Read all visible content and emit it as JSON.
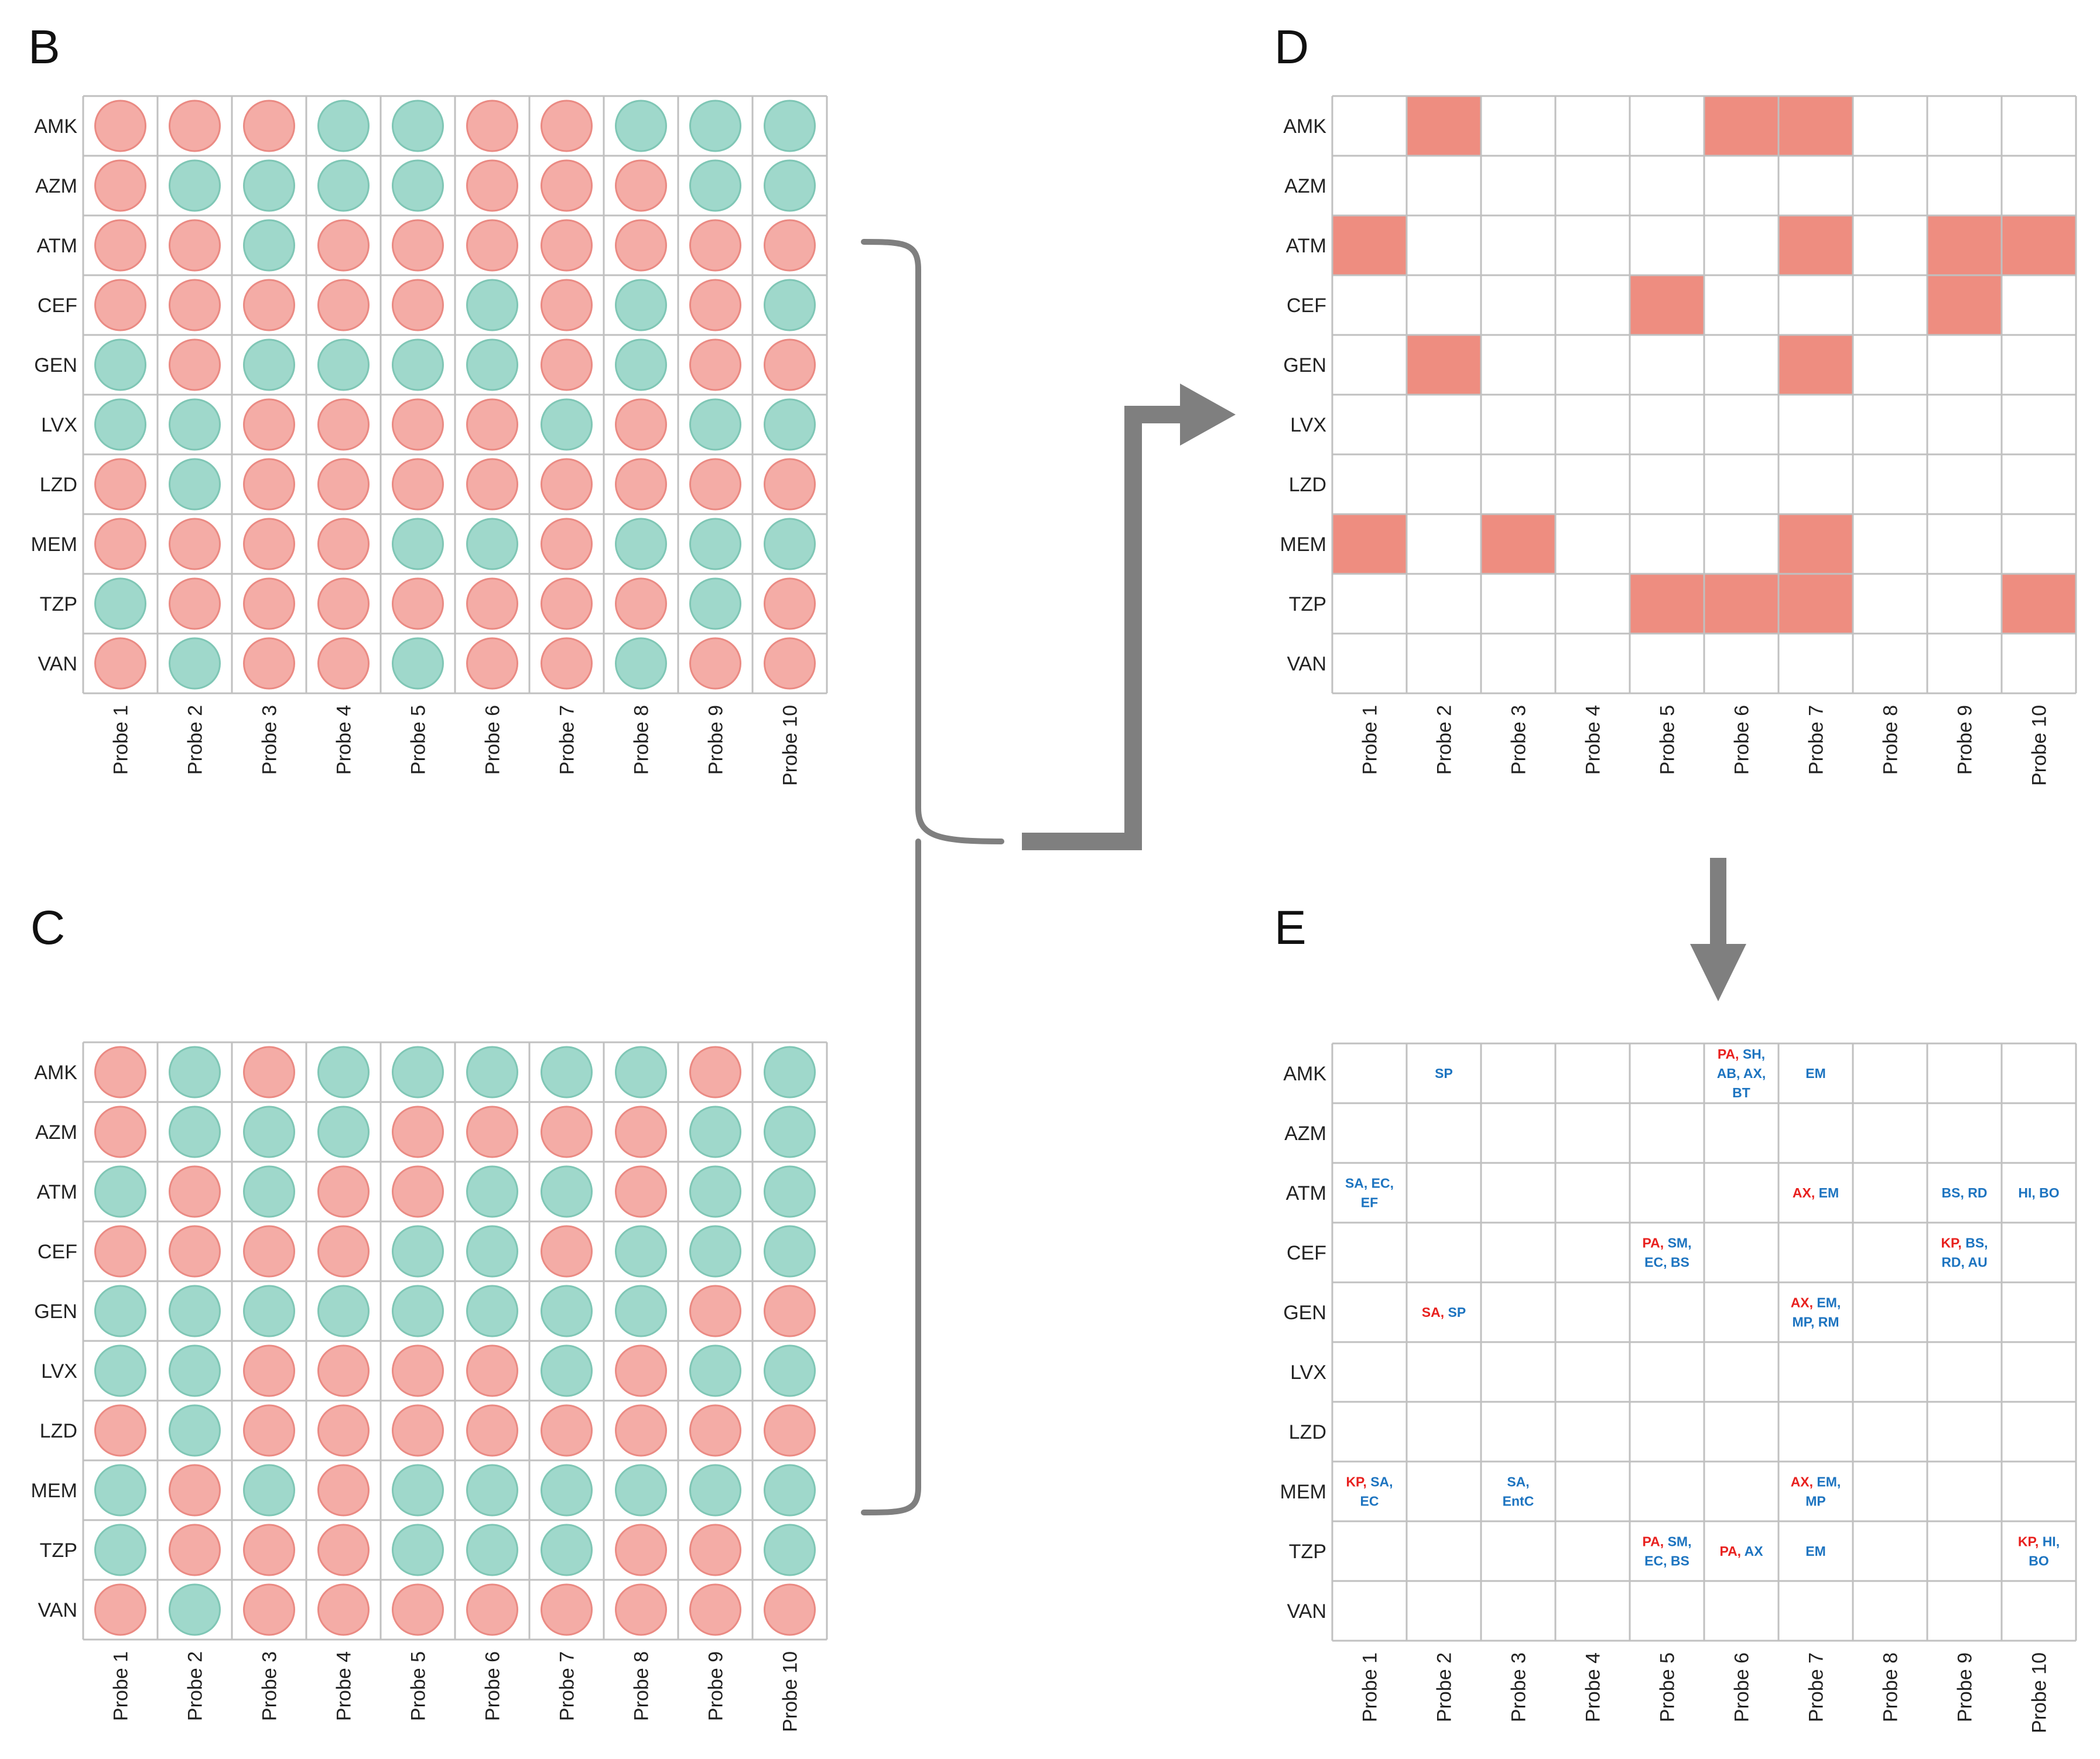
{
  "colors": {
    "susceptible_dot_fill": "#9fd8cb",
    "susceptible_dot_stroke": "#7fc6b5",
    "resistant_dot_fill": "#f4aca6",
    "resistant_dot_stroke": "#ea8a83",
    "mismatch_fill": "#ee8d80",
    "connector": "#7f7f7f",
    "organism_red": "#e8211f",
    "organism_blue": "#1d74c0"
  },
  "antibiotics": [
    "AMK",
    "AZM",
    "ATM",
    "CEF",
    "GEN",
    "LVX",
    "LZD",
    "MEM",
    "TZP",
    "VAN"
  ],
  "probes": [
    "Probe 1",
    "Probe 2",
    "Probe 3",
    "Probe 4",
    "Probe 5",
    "Probe 6",
    "Probe 7",
    "Probe 8",
    "Probe 9",
    "Probe 10"
  ],
  "legend_note": "R = red circle, S = green circle",
  "panels": {
    "B": {
      "letter": "B",
      "matrix": [
        [
          "R",
          "R",
          "R",
          "S",
          "S",
          "R",
          "R",
          "S",
          "S",
          "S"
        ],
        [
          "R",
          "S",
          "S",
          "S",
          "S",
          "R",
          "R",
          "R",
          "S",
          "S"
        ],
        [
          "R",
          "R",
          "S",
          "R",
          "R",
          "R",
          "R",
          "R",
          "R",
          "R"
        ],
        [
          "R",
          "R",
          "R",
          "R",
          "R",
          "S",
          "R",
          "S",
          "R",
          "S"
        ],
        [
          "S",
          "R",
          "S",
          "S",
          "S",
          "S",
          "R",
          "S",
          "R",
          "R"
        ],
        [
          "S",
          "S",
          "R",
          "R",
          "R",
          "R",
          "S",
          "R",
          "S",
          "S"
        ],
        [
          "R",
          "S",
          "R",
          "R",
          "R",
          "R",
          "R",
          "R",
          "R",
          "R"
        ],
        [
          "R",
          "R",
          "R",
          "R",
          "S",
          "S",
          "R",
          "S",
          "S",
          "S"
        ],
        [
          "S",
          "R",
          "R",
          "R",
          "R",
          "R",
          "R",
          "R",
          "S",
          "R"
        ],
        [
          "R",
          "S",
          "R",
          "R",
          "S",
          "R",
          "R",
          "S",
          "R",
          "R"
        ]
      ]
    },
    "C": {
      "letter": "C",
      "matrix": [
        [
          "R",
          "S",
          "R",
          "S",
          "S",
          "S",
          "S",
          "S",
          "R",
          "S"
        ],
        [
          "R",
          "S",
          "S",
          "S",
          "R",
          "R",
          "R",
          "R",
          "S",
          "S"
        ],
        [
          "S",
          "R",
          "S",
          "R",
          "R",
          "S",
          "S",
          "R",
          "S",
          "S"
        ],
        [
          "R",
          "R",
          "R",
          "R",
          "S",
          "S",
          "R",
          "S",
          "S",
          "S"
        ],
        [
          "S",
          "S",
          "S",
          "S",
          "S",
          "S",
          "S",
          "S",
          "R",
          "R"
        ],
        [
          "S",
          "S",
          "R",
          "R",
          "R",
          "R",
          "S",
          "R",
          "S",
          "S"
        ],
        [
          "R",
          "S",
          "R",
          "R",
          "R",
          "R",
          "R",
          "R",
          "R",
          "R"
        ],
        [
          "S",
          "R",
          "S",
          "R",
          "S",
          "S",
          "S",
          "S",
          "S",
          "S"
        ],
        [
          "S",
          "R",
          "R",
          "R",
          "S",
          "S",
          "S",
          "R",
          "R",
          "S"
        ],
        [
          "R",
          "S",
          "R",
          "R",
          "R",
          "R",
          "R",
          "R",
          "R",
          "R"
        ]
      ]
    },
    "D": {
      "letter": "D",
      "matrix": [
        [
          0,
          1,
          0,
          0,
          0,
          1,
          1,
          0,
          0,
          0
        ],
        [
          0,
          0,
          0,
          0,
          0,
          0,
          0,
          0,
          0,
          0
        ],
        [
          1,
          0,
          0,
          0,
          0,
          0,
          1,
          0,
          1,
          1
        ],
        [
          0,
          0,
          0,
          0,
          1,
          0,
          0,
          0,
          1,
          0
        ],
        [
          0,
          1,
          0,
          0,
          0,
          0,
          1,
          0,
          0,
          0
        ],
        [
          0,
          0,
          0,
          0,
          0,
          0,
          0,
          0,
          0,
          0
        ],
        [
          0,
          0,
          0,
          0,
          0,
          0,
          0,
          0,
          0,
          0
        ],
        [
          1,
          0,
          1,
          0,
          0,
          0,
          1,
          0,
          0,
          0
        ],
        [
          0,
          0,
          0,
          0,
          1,
          1,
          1,
          0,
          0,
          1
        ],
        [
          0,
          0,
          0,
          0,
          0,
          0,
          0,
          0,
          0,
          0
        ]
      ]
    },
    "E": {
      "letter": "E",
      "cells": [
        {
          "row": 0,
          "col": 1,
          "lines": [
            [
              {
                "t": "SP",
                "c": "b"
              }
            ]
          ]
        },
        {
          "row": 0,
          "col": 5,
          "lines": [
            [
              {
                "t": "PA, ",
                "c": "r"
              },
              {
                "t": "SH,",
                "c": "b"
              }
            ],
            [
              {
                "t": "AB, AX,",
                "c": "b"
              }
            ],
            [
              {
                "t": "BT",
                "c": "b"
              }
            ]
          ]
        },
        {
          "row": 0,
          "col": 6,
          "lines": [
            [
              {
                "t": "EM",
                "c": "b"
              }
            ]
          ]
        },
        {
          "row": 2,
          "col": 0,
          "lines": [
            [
              {
                "t": "SA, EC,",
                "c": "b"
              }
            ],
            [
              {
                "t": "EF",
                "c": "b"
              }
            ]
          ]
        },
        {
          "row": 2,
          "col": 6,
          "lines": [
            [
              {
                "t": "AX, ",
                "c": "r"
              },
              {
                "t": "EM",
                "c": "b"
              }
            ]
          ]
        },
        {
          "row": 2,
          "col": 8,
          "lines": [
            [
              {
                "t": "BS, RD",
                "c": "b"
              }
            ]
          ]
        },
        {
          "row": 2,
          "col": 9,
          "lines": [
            [
              {
                "t": "HI, BO",
                "c": "b"
              }
            ]
          ]
        },
        {
          "row": 3,
          "col": 4,
          "lines": [
            [
              {
                "t": "PA, ",
                "c": "r"
              },
              {
                "t": "SM,",
                "c": "b"
              }
            ],
            [
              {
                "t": "EC, BS",
                "c": "b"
              }
            ]
          ]
        },
        {
          "row": 3,
          "col": 8,
          "lines": [
            [
              {
                "t": "KP, ",
                "c": "r"
              },
              {
                "t": "BS,",
                "c": "b"
              }
            ],
            [
              {
                "t": "RD, AU",
                "c": "b"
              }
            ]
          ]
        },
        {
          "row": 4,
          "col": 1,
          "lines": [
            [
              {
                "t": "SA, ",
                "c": "r"
              },
              {
                "t": "SP",
                "c": "b"
              }
            ]
          ]
        },
        {
          "row": 4,
          "col": 6,
          "lines": [
            [
              {
                "t": "AX, ",
                "c": "r"
              },
              {
                "t": "EM,",
                "c": "b"
              }
            ],
            [
              {
                "t": "MP, RM",
                "c": "b"
              }
            ]
          ]
        },
        {
          "row": 7,
          "col": 0,
          "lines": [
            [
              {
                "t": "KP, ",
                "c": "r"
              },
              {
                "t": "SA,",
                "c": "b"
              }
            ],
            [
              {
                "t": "EC",
                "c": "b"
              }
            ]
          ]
        },
        {
          "row": 7,
          "col": 2,
          "lines": [
            [
              {
                "t": "SA,",
                "c": "b"
              }
            ],
            [
              {
                "t": "EntC",
                "c": "b"
              }
            ]
          ]
        },
        {
          "row": 7,
          "col": 6,
          "lines": [
            [
              {
                "t": "AX, ",
                "c": "r"
              },
              {
                "t": "EM,",
                "c": "b"
              }
            ],
            [
              {
                "t": "MP",
                "c": "b"
              }
            ]
          ]
        },
        {
          "row": 8,
          "col": 4,
          "lines": [
            [
              {
                "t": "PA, ",
                "c": "r"
              },
              {
                "t": "SM,",
                "c": "b"
              }
            ],
            [
              {
                "t": "EC, BS",
                "c": "b"
              }
            ]
          ]
        },
        {
          "row": 8,
          "col": 5,
          "lines": [
            [
              {
                "t": "PA, ",
                "c": "r"
              },
              {
                "t": "AX",
                "c": "b"
              }
            ]
          ]
        },
        {
          "row": 8,
          "col": 6,
          "lines": [
            [
              {
                "t": "EM",
                "c": "b"
              }
            ]
          ]
        },
        {
          "row": 8,
          "col": 9,
          "lines": [
            [
              {
                "t": "KP, ",
                "c": "r"
              },
              {
                "t": "HI,",
                "c": "b"
              }
            ],
            [
              {
                "t": "BO",
                "c": "b"
              }
            ]
          ]
        }
      ]
    }
  }
}
